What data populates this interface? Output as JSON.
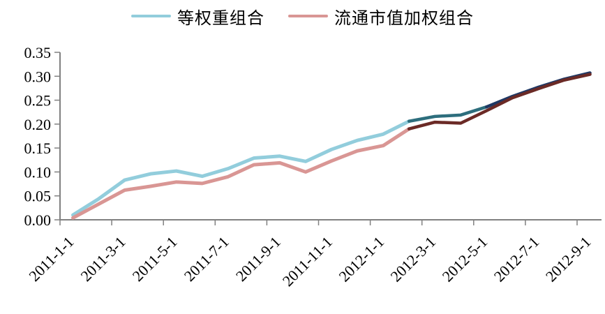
{
  "legend": {
    "items": [
      {
        "label": "等权重组合",
        "color": "#92CDDC"
      },
      {
        "label": "流通市值加权组合",
        "color": "#D99694"
      }
    ]
  },
  "chart_data": {
    "type": "line",
    "title": "",
    "xlabel": "",
    "ylabel": "",
    "grid": false,
    "legend_position": "top-center",
    "axis_color": "#808080",
    "text_color": "#000000",
    "ylim": [
      0,
      0.35
    ],
    "y_ticks": [
      "0.00",
      "0.05",
      "0.10",
      "0.15",
      "0.20",
      "0.25",
      "0.30",
      "0.35"
    ],
    "x": [
      "2011-1-1",
      "2011-2-1",
      "2011-3-1",
      "2011-4-1",
      "2011-5-1",
      "2011-6-1",
      "2011-7-1",
      "2011-8-1",
      "2011-9-1",
      "2011-10-1",
      "2011-11-1",
      "2011-12-1",
      "2012-1-1",
      "2012-2-1",
      "2012-3-1",
      "2012-4-1",
      "2012-5-1",
      "2012-6-1",
      "2012-7-1",
      "2012-8-1",
      "2012-9-1"
    ],
    "x_axis_labels": [
      "2011-1-1",
      "2011-3-1",
      "2011-5-1",
      "2011-7-1",
      "2011-9-1",
      "2011-11-1",
      "2012-1-1",
      "2012-3-1",
      "2012-5-1",
      "2012-7-1",
      "2012-9-1"
    ],
    "series": [
      {
        "name": "等权重组合",
        "values": [
          0.01,
          0.044,
          0.083,
          0.096,
          0.102,
          0.091,
          0.107,
          0.129,
          0.133,
          0.122,
          0.147,
          0.166,
          0.179,
          0.206,
          0.216,
          0.219,
          0.236,
          0.258,
          0.277,
          0.294,
          0.307
        ],
        "segments": [
          {
            "start": 0,
            "end": 13,
            "color": "#92CDDC",
            "width": 5
          },
          {
            "start": 13,
            "end": 16,
            "color": "#2D6E7D",
            "width": 4.5
          },
          {
            "start": 16,
            "end": 20,
            "color": "#1F3864",
            "width": 4.5
          }
        ]
      },
      {
        "name": "流通市值加权组合",
        "values": [
          0.004,
          0.033,
          0.062,
          0.07,
          0.079,
          0.076,
          0.09,
          0.115,
          0.119,
          0.1,
          0.123,
          0.144,
          0.155,
          0.19,
          0.204,
          0.202,
          0.228,
          0.255,
          0.274,
          0.292,
          0.304
        ],
        "segments": [
          {
            "start": 0,
            "end": 13,
            "color": "#D99694",
            "width": 5
          },
          {
            "start": 13,
            "end": 20,
            "color": "#6B2A26",
            "width": 4.5
          }
        ]
      }
    ]
  }
}
